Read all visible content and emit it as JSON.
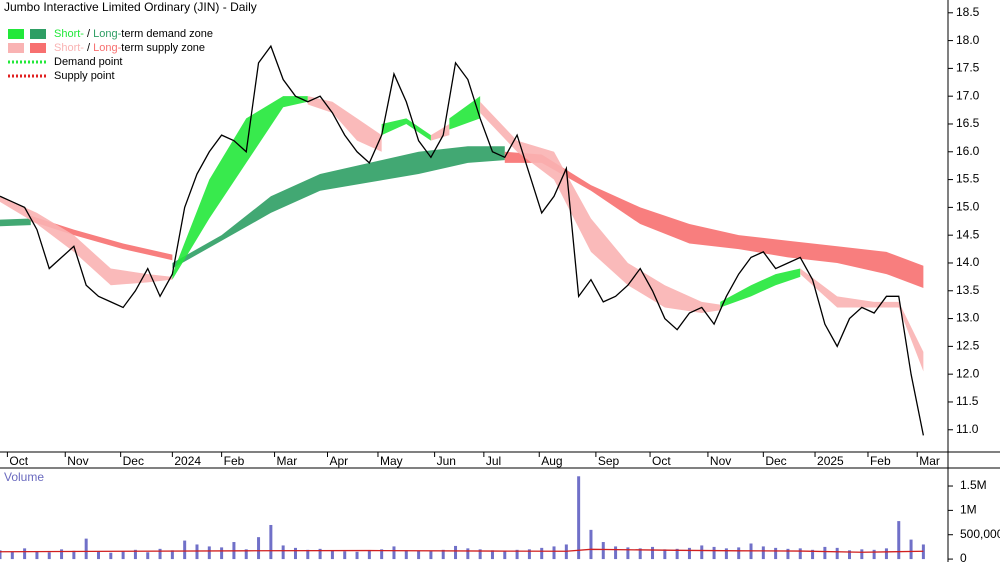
{
  "chart_data": [
    {
      "type": "line",
      "title": "Jumbo Interactive Limited Ordinary (JIN) - Daily",
      "legend": [
        {
          "parts": [
            {
              "text": "Short-",
              "color": "#22e83a"
            },
            {
              "text": " / "
            },
            {
              "text": "Long-",
              "color": "#2e9e64"
            },
            {
              "text": "term demand zone"
            }
          ],
          "swatches": [
            "#22e83a",
            "#2e9e64"
          ]
        },
        {
          "parts": [
            {
              "text": "Short-",
              "color": "#f9b3b3"
            },
            {
              "text": " / "
            },
            {
              "text": "Long-",
              "color": "#f77070"
            },
            {
              "text": "term supply zone"
            }
          ],
          "swatches": [
            "#f9b3b3",
            "#f77070"
          ]
        },
        {
          "parts": [
            {
              "text": "Demand point"
            }
          ],
          "dotted": "#22e83a"
        },
        {
          "parts": [
            {
              "text": "Supply point"
            }
          ],
          "dotted": "#e02020"
        }
      ],
      "color": "#000000",
      "x": [
        0,
        1,
        2,
        3,
        4,
        5,
        6,
        7,
        8,
        9,
        10,
        11,
        12,
        13,
        14,
        15,
        16,
        17,
        18,
        19,
        20,
        21,
        22,
        23,
        24,
        25,
        26,
        27,
        28,
        29,
        30,
        31,
        32,
        33,
        34,
        35,
        36,
        37,
        38,
        39,
        40,
        41,
        42,
        43,
        44,
        45,
        46,
        47,
        48,
        49,
        50,
        51,
        52,
        53,
        54,
        55,
        56,
        57,
        58,
        59,
        60,
        61,
        62,
        63,
        64,
        65,
        66,
        67,
        68,
        69,
        70,
        71,
        72,
        73,
        74,
        75
      ],
      "values": [
        15.2,
        15.1,
        15.0,
        14.6,
        13.9,
        14.1,
        14.3,
        13.6,
        13.4,
        13.3,
        13.2,
        13.5,
        13.9,
        13.4,
        13.8,
        15.0,
        15.6,
        16.0,
        16.3,
        16.2,
        16.0,
        17.6,
        17.9,
        17.3,
        17.0,
        16.9,
        17.0,
        16.7,
        16.3,
        16.0,
        15.8,
        16.3,
        17.4,
        16.9,
        16.2,
        15.9,
        16.3,
        17.6,
        17.3,
        16.6,
        16.0,
        15.9,
        16.3,
        15.6,
        14.9,
        15.2,
        15.7,
        13.4,
        13.7,
        13.3,
        13.4,
        13.6,
        13.9,
        13.5,
        13.0,
        12.8,
        13.1,
        13.2,
        12.9,
        13.4,
        13.8,
        14.1,
        14.2,
        13.9,
        14.0,
        14.1,
        13.7,
        12.9,
        12.5,
        13.0,
        13.2,
        13.1,
        13.4,
        13.4,
        12.0,
        10.9
      ],
      "zones": [
        {
          "color": "#2e9e64",
          "x": [
            0,
            2.5
          ],
          "upper": [
            14.78,
            14.8
          ],
          "lower": [
            14.66,
            14.68
          ]
        },
        {
          "color": "#f77070",
          "x": [
            2.5,
            6,
            10,
            14
          ],
          "upper": [
            14.85,
            14.6,
            14.35,
            14.15
          ],
          "lower": [
            14.75,
            14.5,
            14.25,
            14.05
          ]
        },
        {
          "color": "#2e9e64",
          "x": [
            14,
            18,
            22,
            26,
            30,
            34,
            38,
            41
          ],
          "upper": [
            14.0,
            14.5,
            15.2,
            15.6,
            15.8,
            16.0,
            16.1,
            16.1
          ],
          "lower": [
            13.9,
            14.4,
            14.9,
            15.3,
            15.45,
            15.6,
            15.8,
            15.85
          ]
        },
        {
          "color": "#f77070",
          "x": [
            41,
            44,
            48,
            52,
            56,
            60,
            64,
            68,
            72,
            75
          ],
          "upper": [
            16.0,
            15.95,
            15.4,
            15.0,
            14.7,
            14.5,
            14.4,
            14.3,
            14.2,
            13.95
          ],
          "lower": [
            15.8,
            15.8,
            15.3,
            14.7,
            14.35,
            14.25,
            14.1,
            14.0,
            13.8,
            13.55
          ]
        },
        {
          "color": "#f9b3b3",
          "x": [
            0,
            3,
            6,
            9,
            12,
            14
          ],
          "upper": [
            15.2,
            14.9,
            14.5,
            13.9,
            13.8,
            13.75
          ],
          "lower": [
            15.1,
            14.7,
            14.2,
            13.6,
            13.65,
            13.7
          ]
        },
        {
          "color": "#22e83a",
          "x": [
            14,
            17,
            20,
            23,
            25
          ],
          "upper": [
            13.8,
            15.5,
            16.6,
            17.0,
            17.0
          ],
          "lower": [
            13.7,
            14.8,
            15.8,
            16.8,
            16.9
          ]
        },
        {
          "color": "#f9b3b3",
          "x": [
            25,
            27,
            29,
            31
          ],
          "upper": [
            17.0,
            16.9,
            16.6,
            16.3
          ],
          "lower": [
            16.85,
            16.7,
            16.2,
            16.0
          ]
        },
        {
          "color": "#22e83a",
          "x": [
            31,
            33,
            35
          ],
          "upper": [
            16.5,
            16.6,
            16.3
          ],
          "lower": [
            16.3,
            16.5,
            16.2
          ]
        },
        {
          "color": "#f9b3b3",
          "x": [
            35,
            36.5
          ],
          "upper": [
            16.3,
            16.5
          ],
          "lower": [
            16.2,
            16.3
          ]
        },
        {
          "color": "#22e83a",
          "x": [
            36.5,
            39
          ],
          "upper": [
            16.6,
            17.0
          ],
          "lower": [
            16.4,
            16.6
          ]
        },
        {
          "color": "#f9b3b3",
          "x": [
            39,
            42,
            45,
            48,
            51,
            54,
            57,
            58.5
          ],
          "upper": [
            16.9,
            16.2,
            16.0,
            14.8,
            14.0,
            13.6,
            13.3,
            13.25
          ],
          "lower": [
            16.7,
            16.0,
            15.5,
            14.2,
            13.6,
            13.2,
            13.1,
            13.15
          ]
        },
        {
          "color": "#22e83a",
          "x": [
            58.5,
            61,
            63,
            65
          ],
          "upper": [
            13.3,
            13.6,
            13.8,
            13.9
          ],
          "lower": [
            13.2,
            13.4,
            13.6,
            13.75
          ]
        },
        {
          "color": "#f9b3b3",
          "x": [
            65,
            68,
            71,
            73,
            75
          ],
          "upper": [
            13.9,
            13.4,
            13.3,
            13.3,
            12.4
          ],
          "lower": [
            13.8,
            13.2,
            13.2,
            13.2,
            12.05
          ]
        }
      ],
      "xlim": [
        0,
        77
      ],
      "xticks": [
        {
          "value": 0.6,
          "label": "Oct"
        },
        {
          "value": 5.3,
          "label": "Nov"
        },
        {
          "value": 9.8,
          "label": "Dec"
        },
        {
          "value": 14.0,
          "label": "2024"
        },
        {
          "value": 18.0,
          "label": "Feb"
        },
        {
          "value": 22.3,
          "label": "Mar"
        },
        {
          "value": 26.6,
          "label": "Apr"
        },
        {
          "value": 30.7,
          "label": "May"
        },
        {
          "value": 35.3,
          "label": "Jun"
        },
        {
          "value": 39.3,
          "label": "Jul"
        },
        {
          "value": 43.8,
          "label": "Aug"
        },
        {
          "value": 48.4,
          "label": "Sep"
        },
        {
          "value": 52.8,
          "label": "Oct"
        },
        {
          "value": 57.5,
          "label": "Nov"
        },
        {
          "value": 62.0,
          "label": "Dec"
        },
        {
          "value": 66.2,
          "label": "2025"
        },
        {
          "value": 70.5,
          "label": "Feb"
        },
        {
          "value": 74.5,
          "label": "Mar"
        }
      ],
      "ylim": [
        10.6,
        18.73
      ],
      "yticks": [
        {
          "value": 11,
          "label": "11.0"
        },
        11.5,
        {
          "value": 12,
          "label": "12.0"
        },
        12.5,
        {
          "value": 13,
          "label": "13.0"
        },
        13.5,
        {
          "value": 14,
          "label": "14.0"
        },
        14.5,
        {
          "value": 15,
          "label": "15.0"
        },
        15.5,
        {
          "value": 16,
          "label": "16.0"
        },
        16.5,
        {
          "value": 17,
          "label": "17.0"
        },
        17.5,
        {
          "value": 18,
          "label": "18.0"
        },
        18.5
      ]
    },
    {
      "type": "bar",
      "title": "Volume",
      "color": "#7070c8",
      "x": [
        0,
        1,
        2,
        3,
        4,
        5,
        6,
        7,
        8,
        9,
        10,
        11,
        12,
        13,
        14,
        15,
        16,
        17,
        18,
        19,
        20,
        21,
        22,
        23,
        24,
        25,
        26,
        27,
        28,
        29,
        30,
        31,
        32,
        33,
        34,
        35,
        36,
        37,
        38,
        39,
        40,
        41,
        42,
        43,
        44,
        45,
        46,
        47,
        48,
        49,
        50,
        51,
        52,
        53,
        54,
        55,
        56,
        57,
        58,
        59,
        60,
        61,
        62,
        63,
        64,
        65,
        66,
        67,
        68,
        69,
        70,
        71,
        72,
        73,
        74,
        75
      ],
      "values": [
        180000,
        150000,
        220000,
        160000,
        140000,
        200000,
        170000,
        420000,
        150000,
        130000,
        160000,
        190000,
        140000,
        210000,
        180000,
        380000,
        300000,
        260000,
        240000,
        350000,
        200000,
        450000,
        700000,
        280000,
        230000,
        190000,
        210000,
        170000,
        160000,
        150000,
        180000,
        200000,
        260000,
        180000,
        170000,
        160000,
        190000,
        270000,
        220000,
        200000,
        180000,
        160000,
        190000,
        200000,
        230000,
        260000,
        300000,
        1700000,
        600000,
        350000,
        260000,
        240000,
        220000,
        250000,
        200000,
        210000,
        230000,
        280000,
        250000,
        220000,
        240000,
        320000,
        260000,
        230000,
        210000,
        220000,
        190000,
        250000,
        230000,
        180000,
        200000,
        190000,
        220000,
        780000,
        400000,
        300000
      ],
      "average": {
        "color": "#d02020",
        "x": [
          0,
          10,
          20,
          30,
          40,
          46,
          48,
          55,
          60,
          65,
          70,
          75
        ],
        "values": [
          150000,
          160000,
          170000,
          175000,
          165000,
          160000,
          200000,
          180000,
          170000,
          165000,
          140000,
          160000
        ]
      },
      "xlim": [
        0,
        77
      ],
      "ylim": [
        -60000,
        1870000
      ],
      "yticks": [
        0,
        {
          "value": 500000,
          "label": "500,000"
        },
        {
          "value": 1000000,
          "label": "1M"
        },
        {
          "value": 1500000,
          "label": "1.5M"
        }
      ]
    }
  ]
}
